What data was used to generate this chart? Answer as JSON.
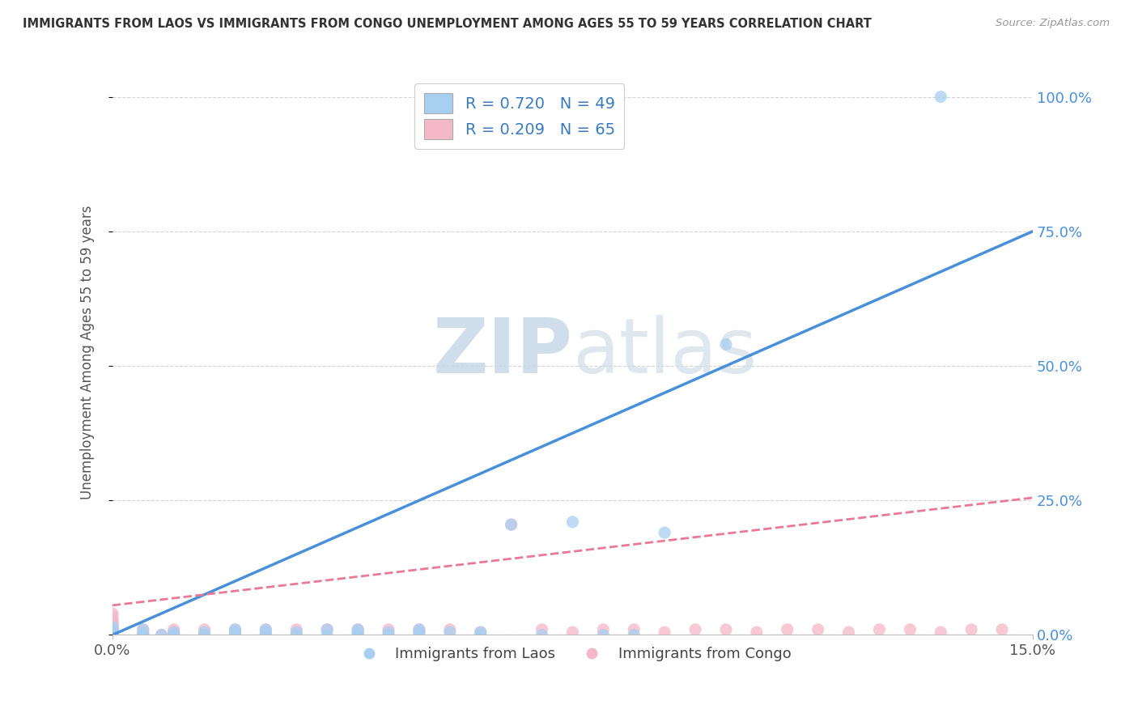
{
  "title": "IMMIGRANTS FROM LAOS VS IMMIGRANTS FROM CONGO UNEMPLOYMENT AMONG AGES 55 TO 59 YEARS CORRELATION CHART",
  "source": "Source: ZipAtlas.com",
  "ylabel": "Unemployment Among Ages 55 to 59 years",
  "xlim": [
    0.0,
    0.15
  ],
  "ylim": [
    0.0,
    1.05
  ],
  "laos_R": 0.72,
  "laos_N": 49,
  "congo_R": 0.209,
  "congo_N": 65,
  "laos_color": "#a8cff0",
  "congo_color": "#f5b8c8",
  "laos_line_color": "#4a90d9",
  "congo_line_color": "#e87a96",
  "watermark_zip": "ZIP",
  "watermark_atlas": "atlas",
  "background_color": "#ffffff",
  "grid_color": "#d0d0d0",
  "title_color": "#333333",
  "legend_label_laos": "Immigrants from Laos",
  "legend_label_congo": "Immigrants from Congo",
  "laos_line_x0": 0.0,
  "laos_line_y0": 0.0,
  "laos_line_x1": 0.15,
  "laos_line_y1": 0.75,
  "congo_line_x0": 0.0,
  "congo_line_y0": 0.055,
  "congo_line_x1": 0.15,
  "congo_line_y1": 0.255,
  "laos_scatter_x": [
    0.0,
    0.0,
    0.0,
    0.0,
    0.0,
    0.0,
    0.0,
    0.0,
    0.0,
    0.0,
    0.005,
    0.005,
    0.005,
    0.008,
    0.01,
    0.01,
    0.01,
    0.015,
    0.015,
    0.02,
    0.02,
    0.02,
    0.025,
    0.025,
    0.025,
    0.03,
    0.03,
    0.035,
    0.035,
    0.04,
    0.04,
    0.04,
    0.04,
    0.045,
    0.045,
    0.05,
    0.05,
    0.05,
    0.055,
    0.06,
    0.06,
    0.065,
    0.07,
    0.075,
    0.08,
    0.085,
    0.09,
    0.1,
    0.135
  ],
  "laos_scatter_y": [
    0.0,
    0.0,
    0.0,
    0.0,
    0.0,
    0.005,
    0.005,
    0.01,
    0.01,
    0.015,
    0.0,
    0.0,
    0.01,
    0.0,
    0.0,
    0.0,
    0.005,
    0.0,
    0.005,
    0.0,
    0.005,
    0.01,
    0.0,
    0.005,
    0.01,
    0.0,
    0.005,
    0.0,
    0.01,
    0.0,
    0.0,
    0.005,
    0.01,
    0.0,
    0.005,
    0.0,
    0.005,
    0.01,
    0.005,
    0.0,
    0.005,
    0.205,
    0.0,
    0.21,
    0.0,
    0.0,
    0.19,
    0.54,
    1.0
  ],
  "congo_scatter_x": [
    0.0,
    0.0,
    0.0,
    0.0,
    0.0,
    0.0,
    0.0,
    0.0,
    0.0,
    0.0,
    0.0,
    0.0,
    0.0,
    0.0,
    0.0,
    0.0,
    0.0,
    0.0,
    0.0,
    0.0,
    0.005,
    0.005,
    0.005,
    0.008,
    0.01,
    0.01,
    0.015,
    0.015,
    0.02,
    0.02,
    0.025,
    0.025,
    0.03,
    0.03,
    0.035,
    0.04,
    0.04,
    0.045,
    0.05,
    0.05,
    0.055,
    0.06,
    0.065,
    0.07,
    0.075,
    0.08,
    0.085,
    0.09,
    0.095,
    0.1,
    0.105,
    0.11,
    0.115,
    0.12,
    0.125,
    0.13,
    0.135,
    0.14,
    0.145,
    0.0,
    0.0,
    0.0,
    0.0,
    0.0,
    0.0
  ],
  "congo_scatter_y": [
    0.0,
    0.0,
    0.0,
    0.0,
    0.0,
    0.0,
    0.0,
    0.0,
    0.005,
    0.005,
    0.01,
    0.01,
    0.015,
    0.015,
    0.02,
    0.02,
    0.025,
    0.03,
    0.035,
    0.04,
    0.0,
    0.005,
    0.01,
    0.0,
    0.005,
    0.01,
    0.0,
    0.01,
    0.005,
    0.01,
    0.0,
    0.01,
    0.0,
    0.01,
    0.01,
    0.0,
    0.01,
    0.01,
    0.005,
    0.01,
    0.01,
    0.005,
    0.205,
    0.01,
    0.005,
    0.01,
    0.01,
    0.005,
    0.01,
    0.01,
    0.005,
    0.01,
    0.01,
    0.005,
    0.01,
    0.01,
    0.005,
    0.01,
    0.01,
    0.0,
    0.005,
    0.01,
    0.015,
    0.02,
    0.025
  ]
}
